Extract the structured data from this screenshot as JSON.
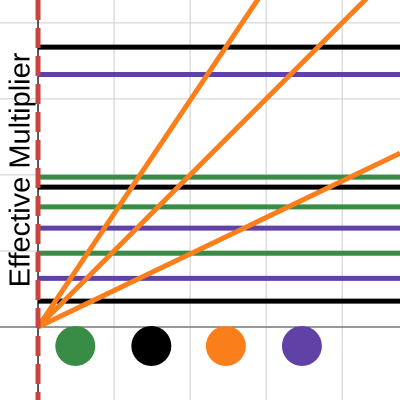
{
  "chart_data": {
    "type": "graph",
    "y_label": "Effective Multiplier",
    "xlim": [
      -0.5,
      4.76
    ],
    "ylim": [
      -0.96,
      4.3
    ],
    "xticks": [
      0,
      1,
      2,
      3,
      4
    ],
    "yticks": [
      0,
      1,
      2,
      3,
      4
    ],
    "grid": true,
    "vline": {
      "x": 0,
      "color": "#c74440"
    },
    "hlines": [
      {
        "value": 3.68,
        "color": "#000000"
      },
      {
        "value": 3.32,
        "color": "#6042a6"
      },
      {
        "value": 1.97,
        "color": "#388c46"
      },
      {
        "value": 1.84,
        "color": "#000000"
      },
      {
        "value": 1.58,
        "color": "#388c46"
      },
      {
        "value": 1.3,
        "color": "#6042a6"
      },
      {
        "value": 0.97,
        "color": "#388c46"
      },
      {
        "value": 0.64,
        "color": "#6042a6"
      },
      {
        "value": 0.34,
        "color": "#000000"
      }
    ],
    "rays": [
      {
        "slope": 1.49,
        "color": "#fa7e19"
      },
      {
        "slope": 1.0,
        "color": "#fa7e19"
      },
      {
        "slope": 0.48,
        "color": "#fa7e19"
      }
    ],
    "points": [
      {
        "x": 0.49,
        "y": -0.25,
        "color": "#388c46"
      },
      {
        "x": 1.49,
        "y": -0.25,
        "color": "#000000"
      },
      {
        "x": 2.47,
        "y": -0.25,
        "color": "#fa7e19"
      },
      {
        "x": 3.47,
        "y": -0.25,
        "color": "#6042a6"
      }
    ]
  }
}
